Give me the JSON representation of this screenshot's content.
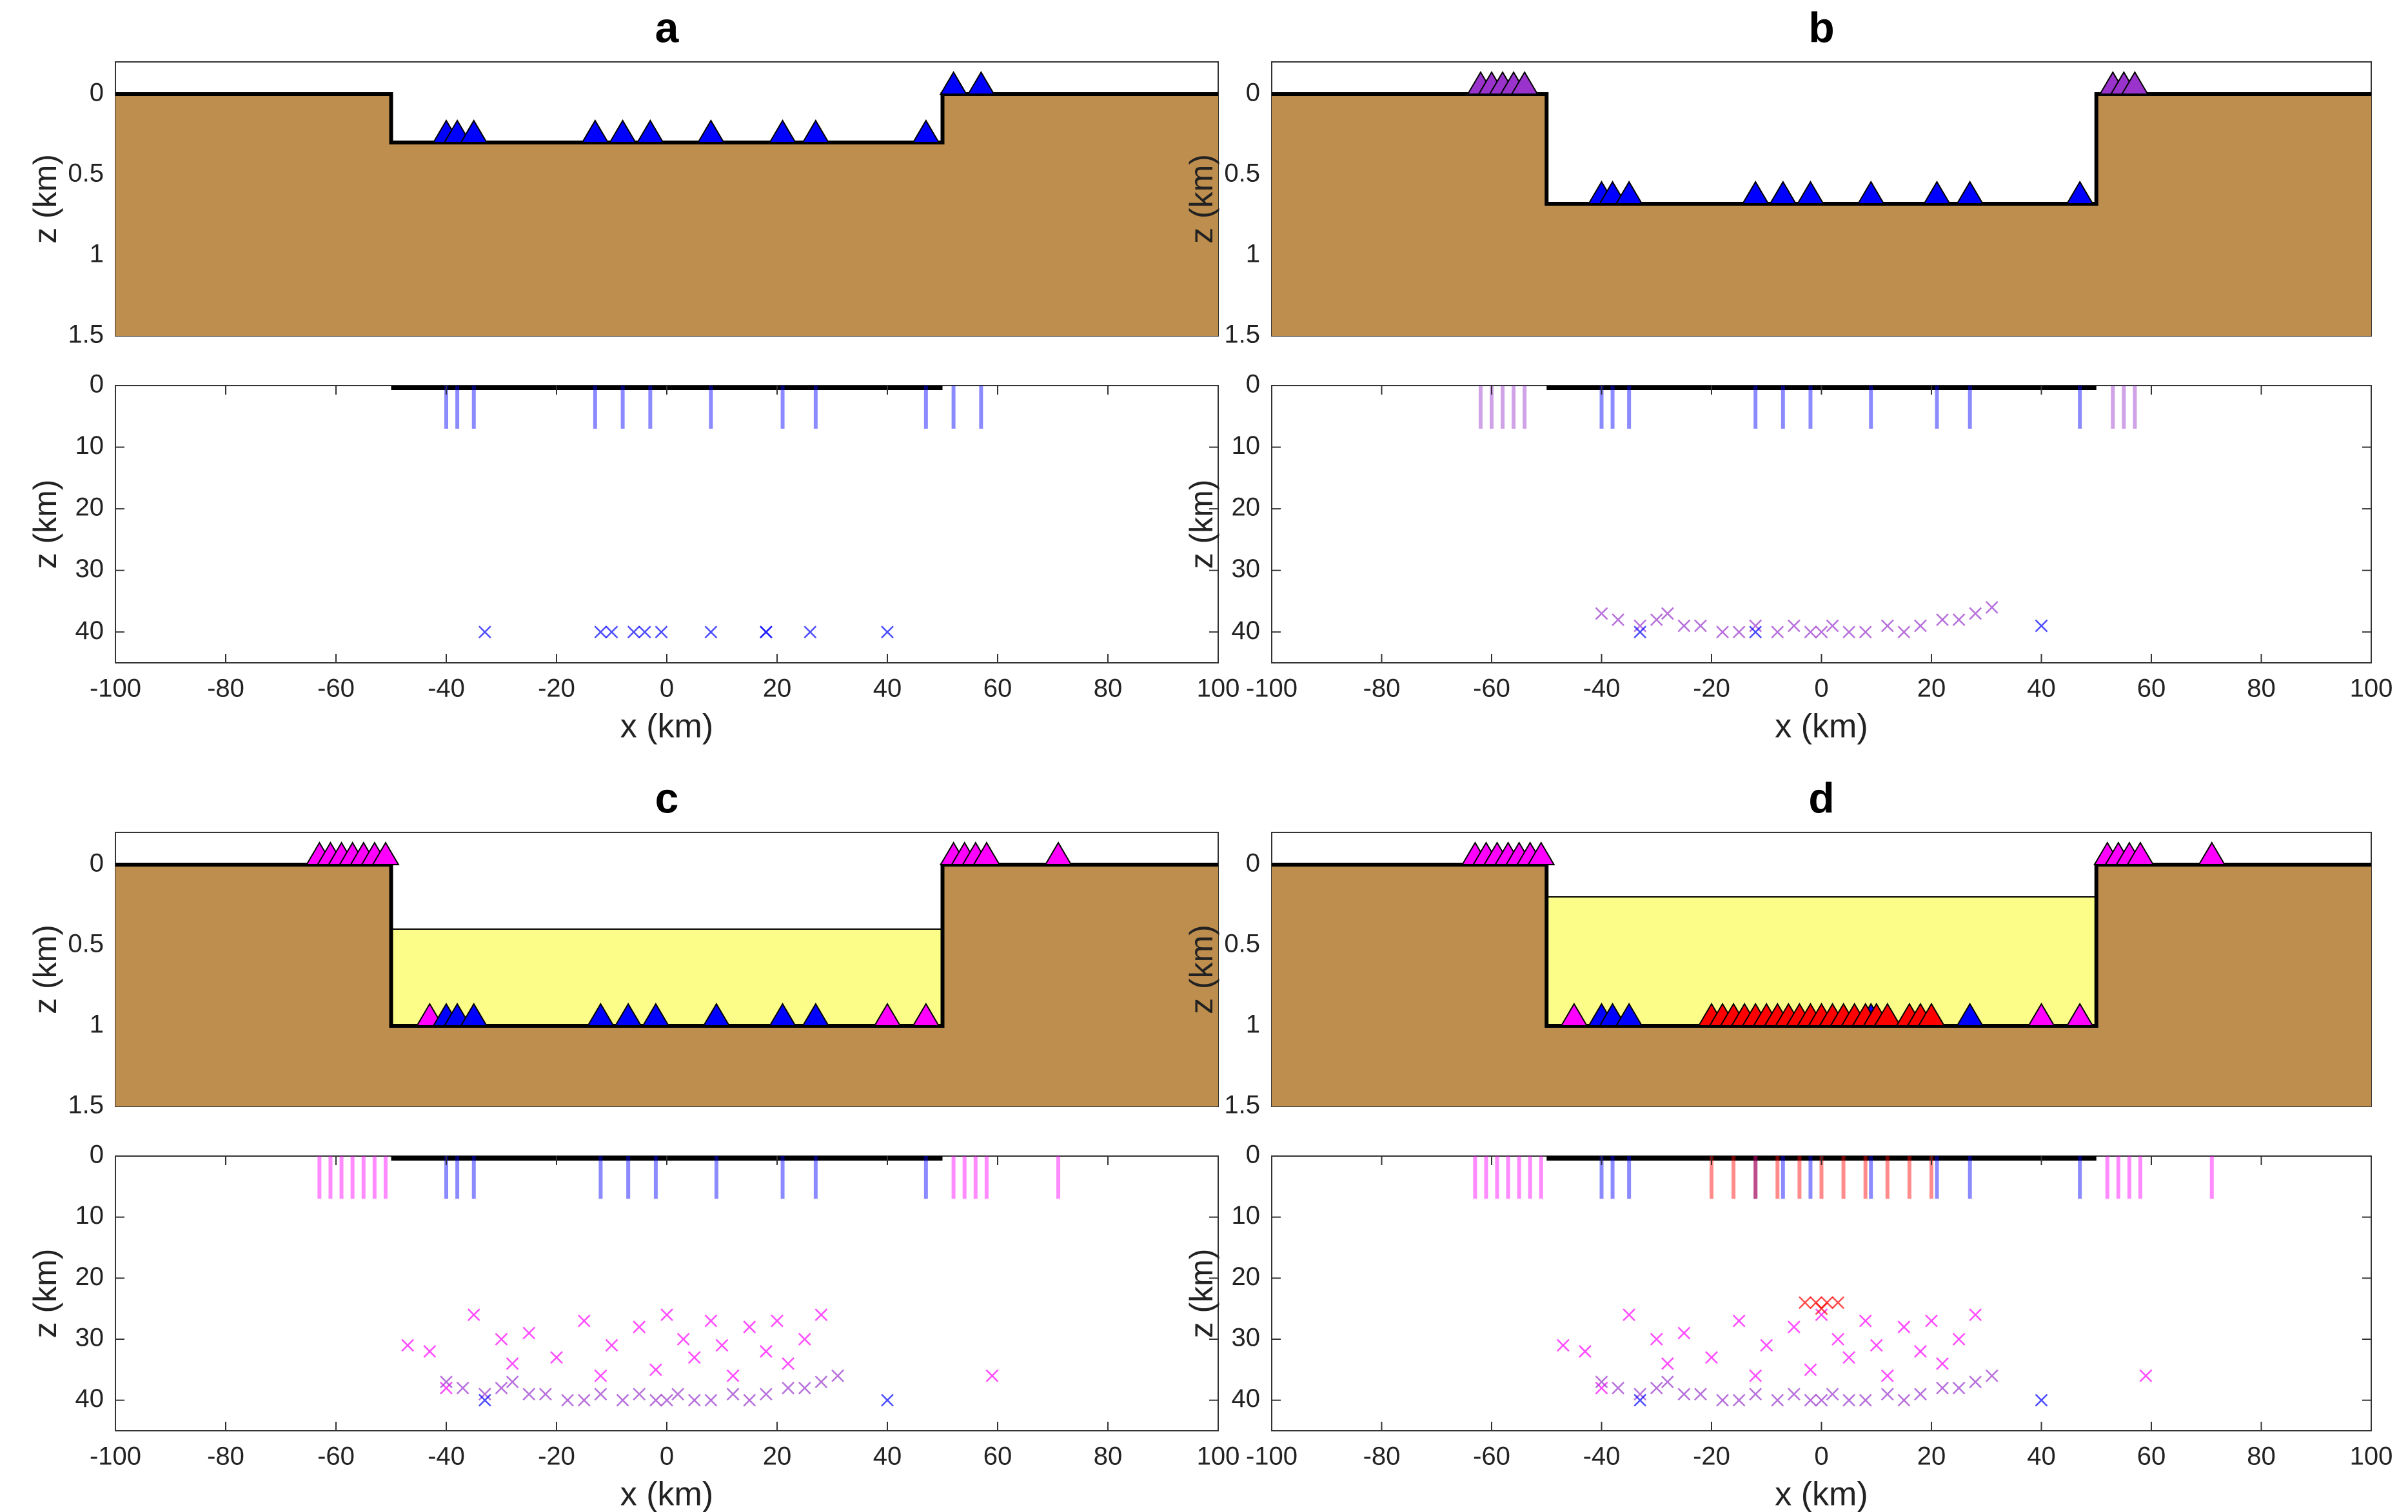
{
  "chart_data": [
    {
      "type": "profile",
      "title": "a",
      "ylabel": "z (km)",
      "xlim": [
        -100,
        100
      ],
      "ylim": [
        -0.2,
        1.5
      ],
      "yticks": [
        0,
        0.5,
        1,
        1.5
      ],
      "y_inverted": true,
      "surface": {
        "color": "#be8e4e",
        "x": [
          -100,
          -50,
          -50,
          50,
          50,
          100
        ],
        "z": [
          0,
          0,
          0.3,
          0.3,
          0,
          0
        ]
      },
      "series": [
        {
          "color": "#0000ff",
          "x": [
            -40,
            -38,
            -35,
            -13,
            -8,
            -3,
            8,
            21,
            27,
            47,
            52,
            57
          ],
          "values": [
            0.3,
            0.3,
            0.3,
            0.3,
            0.3,
            0.3,
            0.3,
            0.3,
            0.3,
            0.3,
            0,
            0
          ]
        }
      ]
    },
    {
      "type": "scatter",
      "xlabel": "x (km)",
      "ylabel": "z (km)",
      "xlim": [
        -100,
        100
      ],
      "xticks": [
        -100,
        -80,
        -60,
        -40,
        -20,
        0,
        20,
        40,
        60,
        80,
        100
      ],
      "ylim": [
        0,
        45
      ],
      "yticks": [
        0,
        10,
        20,
        30,
        40
      ],
      "y_inverted": true,
      "basin": [
        -50,
        50
      ],
      "rays": [
        {
          "color": "#0000ff",
          "x": [
            -40,
            -38,
            -35,
            -13,
            -8,
            -3,
            8,
            21,
            27,
            47,
            52,
            57
          ],
          "values": [
            7,
            7,
            7,
            7,
            7,
            7,
            7,
            7,
            7,
            7,
            7,
            7
          ]
        }
      ],
      "series": [
        {
          "color": "#0000ff",
          "x": [
            -33,
            -12,
            -10,
            -6,
            -4,
            -1,
            8,
            18,
            18,
            26,
            40
          ],
          "values": [
            40,
            40,
            40,
            40,
            40,
            40,
            40,
            40,
            40,
            40,
            40
          ]
        }
      ]
    },
    {
      "type": "profile",
      "title": "b",
      "ylabel": "z (km)",
      "xlim": [
        -100,
        100
      ],
      "ylim": [
        -0.2,
        1.5
      ],
      "yticks": [
        0,
        0.5,
        1,
        1.5
      ],
      "y_inverted": true,
      "surface": {
        "color": "#be8e4e",
        "x": [
          -100,
          -50,
          -50,
          50,
          50,
          100
        ],
        "z": [
          0,
          0,
          0.68,
          0.68,
          0,
          0
        ]
      },
      "series": [
        {
          "color": "#9933cc",
          "x": [
            -62,
            -60,
            -58,
            -56,
            -54,
            53,
            55,
            57
          ],
          "values": [
            0,
            0,
            0,
            0,
            0,
            0,
            0,
            0
          ]
        },
        {
          "color": "#0000ff",
          "x": [
            -40,
            -38,
            -35,
            -12,
            -7,
            -2,
            9,
            21,
            27,
            47
          ],
          "values": [
            0.68,
            0.68,
            0.68,
            0.68,
            0.68,
            0.68,
            0.68,
            0.68,
            0.68,
            0.68
          ]
        }
      ]
    },
    {
      "type": "scatter",
      "xlabel": "x (km)",
      "ylabel": "z (km)",
      "xlim": [
        -100,
        100
      ],
      "xticks": [
        -100,
        -80,
        -60,
        -40,
        -20,
        0,
        20,
        40,
        60,
        80,
        100
      ],
      "ylim": [
        0,
        45
      ],
      "yticks": [
        0,
        10,
        20,
        30,
        40
      ],
      "y_inverted": true,
      "basin": [
        -50,
        50
      ],
      "rays": [
        {
          "color": "#9933cc",
          "x": [
            -62,
            -60,
            -58,
            -56,
            -54,
            53,
            55,
            57
          ],
          "values": [
            7,
            7,
            7,
            7,
            7,
            7,
            7,
            7
          ]
        },
        {
          "color": "#0000ff",
          "x": [
            -40,
            -38,
            -35,
            -12,
            -7,
            -2,
            9,
            21,
            27,
            47
          ],
          "values": [
            7,
            7,
            7,
            7,
            7,
            7,
            7,
            7,
            7,
            7
          ]
        }
      ],
      "series": [
        {
          "color": "#9933cc",
          "x": [
            -40,
            -37,
            -33,
            -30,
            -28,
            -25,
            -22,
            -18,
            -15,
            -12,
            -8,
            -5,
            -2,
            0,
            2,
            5,
            8,
            12,
            15,
            18,
            22,
            25,
            28,
            31
          ],
          "values": [
            37,
            38,
            39,
            38,
            37,
            39,
            39,
            40,
            40,
            39,
            40,
            39,
            40,
            40,
            39,
            40,
            40,
            39,
            40,
            39,
            38,
            38,
            37,
            36
          ]
        },
        {
          "color": "#0000ff",
          "x": [
            -33,
            -12,
            40
          ],
          "values": [
            40,
            40,
            39
          ]
        }
      ]
    },
    {
      "type": "profile",
      "title": "c",
      "ylabel": "z (km)",
      "xlim": [
        -100,
        100
      ],
      "ylim": [
        -0.2,
        1.5
      ],
      "yticks": [
        0,
        0.5,
        1,
        1.5
      ],
      "y_inverted": true,
      "surface": {
        "color": "#be8e4e",
        "x": [
          -100,
          -50,
          -50,
          50,
          50,
          100
        ],
        "z": [
          0,
          0,
          1,
          1,
          0,
          0
        ]
      },
      "sediment": {
        "color": "#fcfc88",
        "x": [
          -50,
          50,
          50,
          -50
        ],
        "z": [
          0.4,
          0.4,
          1,
          1
        ]
      },
      "series": [
        {
          "color": "#ff00ff",
          "x": [
            -63,
            -61,
            -59,
            -57,
            -55,
            -53,
            -51,
            52,
            54,
            56,
            58,
            71,
            -43,
            40,
            47
          ],
          "values": [
            0,
            0,
            0,
            0,
            0,
            0,
            0,
            0,
            0,
            0,
            0,
            0,
            1,
            1,
            1
          ]
        },
        {
          "color": "#0000ff",
          "x": [
            -40,
            -38,
            -35,
            -12,
            -7,
            -2,
            9,
            21,
            27
          ],
          "values": [
            1,
            1,
            1,
            1,
            1,
            1,
            1,
            1,
            1
          ]
        }
      ]
    },
    {
      "type": "scatter",
      "xlabel": "x (km)",
      "ylabel": "z (km)",
      "xlim": [
        -100,
        100
      ],
      "xticks": [
        -100,
        -80,
        -60,
        -40,
        -20,
        0,
        20,
        40,
        60,
        80,
        100
      ],
      "ylim": [
        0,
        45
      ],
      "yticks": [
        0,
        10,
        20,
        30,
        40
      ],
      "y_inverted": true,
      "basin": [
        -50,
        50
      ],
      "rays": [
        {
          "color": "#ff00ff",
          "x": [
            -63,
            -61,
            -59,
            -57,
            -55,
            -53,
            -51,
            52,
            54,
            56,
            58,
            71
          ],
          "values": [
            7,
            7,
            7,
            7,
            7,
            7,
            7,
            7,
            7,
            7,
            7,
            7
          ]
        },
        {
          "color": "#0000ff",
          "x": [
            -40,
            -38,
            -35,
            -12,
            -7,
            -2,
            9,
            21,
            27,
            47
          ],
          "values": [
            7,
            7,
            7,
            7,
            7,
            7,
            7,
            7,
            7,
            7
          ]
        }
      ],
      "series": [
        {
          "color": "#ff00ff",
          "x": [
            -47,
            -43,
            -40,
            -35,
            -30,
            -28,
            -25,
            -20,
            -15,
            -12,
            -10,
            -5,
            -2,
            0,
            3,
            5,
            8,
            10,
            12,
            15,
            18,
            20,
            22,
            25,
            28,
            59
          ],
          "values": [
            31,
            32,
            38,
            26,
            30,
            34,
            29,
            33,
            27,
            36,
            31,
            28,
            35,
            26,
            30,
            33,
            27,
            31,
            36,
            28,
            32,
            27,
            34,
            30,
            26,
            36
          ]
        },
        {
          "color": "#9933cc",
          "x": [
            -40,
            -37,
            -33,
            -30,
            -28,
            -25,
            -22,
            -18,
            -15,
            -12,
            -8,
            -5,
            -2,
            0,
            2,
            5,
            8,
            12,
            15,
            18,
            22,
            25,
            28,
            31
          ],
          "values": [
            37,
            38,
            39,
            38,
            37,
            39,
            39,
            40,
            40,
            39,
            40,
            39,
            40,
            40,
            39,
            40,
            40,
            39,
            40,
            39,
            38,
            38,
            37,
            36
          ]
        },
        {
          "color": "#0000ff",
          "x": [
            -33,
            40
          ],
          "values": [
            40,
            40
          ]
        }
      ]
    },
    {
      "type": "profile",
      "title": "d",
      "ylabel": "z (km)",
      "xlim": [
        -100,
        100
      ],
      "ylim": [
        -0.2,
        1.5
      ],
      "yticks": [
        0,
        0.5,
        1,
        1.5
      ],
      "y_inverted": true,
      "surface": {
        "color": "#be8e4e",
        "x": [
          -100,
          -50,
          -50,
          50,
          50,
          100
        ],
        "z": [
          0,
          0,
          1,
          1,
          0,
          0
        ]
      },
      "sediment": {
        "color": "#fcfc88",
        "x": [
          -50,
          50,
          50,
          -50
        ],
        "z": [
          0.2,
          0.2,
          1,
          1
        ]
      },
      "series": [
        {
          "color": "#ff00ff",
          "x": [
            -63,
            -61,
            -59,
            -57,
            -55,
            -53,
            -51,
            52,
            54,
            56,
            58,
            71,
            -45,
            40,
            47
          ],
          "values": [
            0,
            0,
            0,
            0,
            0,
            0,
            0,
            0,
            0,
            0,
            0,
            0,
            1,
            1,
            1
          ]
        },
        {
          "color": "#0000ff",
          "x": [
            -40,
            -38,
            -35,
            9,
            27
          ],
          "values": [
            1,
            1,
            1,
            1,
            1
          ]
        },
        {
          "color": "#ff0000",
          "x": [
            -20,
            -18,
            -16,
            -14,
            -12,
            -10,
            -8,
            -6,
            -4,
            -2,
            0,
            2,
            4,
            6,
            8,
            10,
            12,
            16,
            18,
            20
          ],
          "values": [
            1,
            1,
            1,
            1,
            1,
            1,
            1,
            1,
            1,
            1,
            1,
            1,
            1,
            1,
            1,
            1,
            1,
            1,
            1,
            1
          ]
        }
      ]
    },
    {
      "type": "scatter",
      "xlabel": "x (km)",
      "ylabel": "z (km)",
      "xlim": [
        -100,
        100
      ],
      "xticks": [
        -100,
        -80,
        -60,
        -40,
        -20,
        0,
        20,
        40,
        60,
        80,
        100
      ],
      "ylim": [
        0,
        45
      ],
      "yticks": [
        0,
        10,
        20,
        30,
        40
      ],
      "y_inverted": true,
      "basin": [
        -50,
        50
      ],
      "rays": [
        {
          "color": "#ff00ff",
          "x": [
            -63,
            -61,
            -59,
            -57,
            -55,
            -53,
            -51,
            52,
            54,
            56,
            58,
            71
          ],
          "values": [
            7,
            7,
            7,
            7,
            7,
            7,
            7,
            7,
            7,
            7,
            7,
            7
          ]
        },
        {
          "color": "#0000ff",
          "x": [
            -40,
            -38,
            -35,
            -12,
            -7,
            -2,
            9,
            21,
            27,
            47
          ],
          "values": [
            7,
            7,
            7,
            7,
            7,
            7,
            7,
            7,
            7,
            7
          ]
        },
        {
          "color": "#ff0000",
          "x": [
            -20,
            -16,
            -12,
            -8,
            -4,
            0,
            4,
            8,
            12,
            16,
            20
          ],
          "values": [
            7,
            7,
            7,
            7,
            7,
            7,
            7,
            7,
            7,
            7,
            7
          ]
        }
      ],
      "series": [
        {
          "color": "#ff00ff",
          "x": [
            -47,
            -43,
            -40,
            -35,
            -30,
            -28,
            -25,
            -20,
            -15,
            -12,
            -10,
            -5,
            -2,
            0,
            3,
            5,
            8,
            10,
            12,
            15,
            18,
            20,
            22,
            25,
            28,
            59
          ],
          "values": [
            31,
            32,
            38,
            26,
            30,
            34,
            29,
            33,
            27,
            36,
            31,
            28,
            35,
            26,
            30,
            33,
            27,
            31,
            36,
            28,
            32,
            27,
            34,
            30,
            26,
            36
          ]
        },
        {
          "color": "#9933cc",
          "x": [
            -40,
            -37,
            -33,
            -30,
            -28,
            -25,
            -22,
            -18,
            -15,
            -12,
            -8,
            -5,
            -2,
            0,
            2,
            5,
            8,
            12,
            15,
            18,
            22,
            25,
            28,
            31
          ],
          "values": [
            37,
            38,
            39,
            38,
            37,
            39,
            39,
            40,
            40,
            39,
            40,
            39,
            40,
            40,
            39,
            40,
            40,
            39,
            40,
            39,
            38,
            38,
            37,
            36
          ]
        },
        {
          "color": "#ff0000",
          "x": [
            -3,
            -1,
            0,
            1,
            3
          ],
          "values": [
            24,
            24,
            25,
            24,
            24
          ]
        },
        {
          "color": "#0000ff",
          "x": [
            -33,
            40
          ],
          "values": [
            40,
            40
          ]
        }
      ]
    }
  ]
}
